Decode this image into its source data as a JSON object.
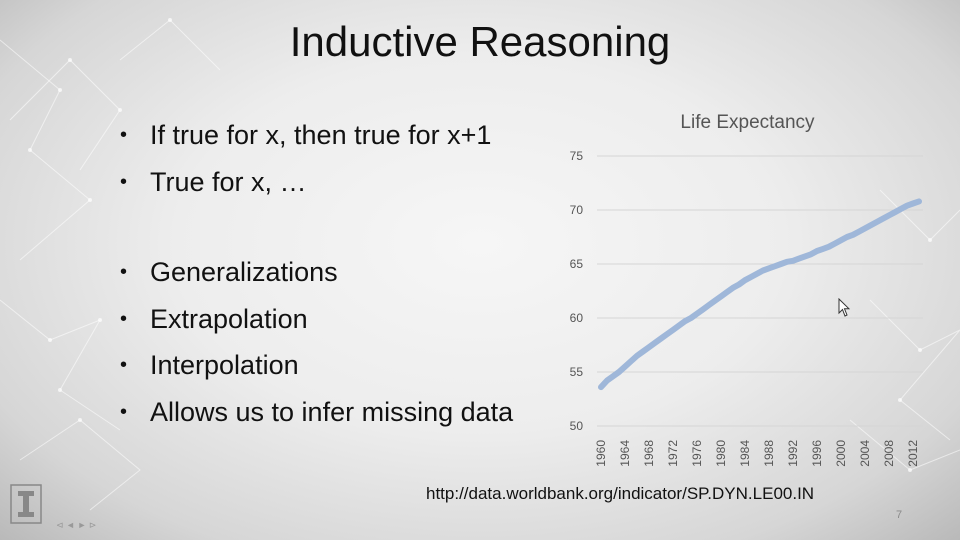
{
  "slide": {
    "title": "Inductive Reasoning",
    "bullets": [
      "If true for x, then true for x+1",
      "True for x, …",
      "Generalizations",
      "Extrapolation",
      "Interpolation",
      "Allows us to infer missing data"
    ],
    "bullet_symbol": "•",
    "source_link": "http://data.worldbank.org/indicator/SP.DYN.LE00.IN",
    "page_number": "7",
    "footer_controls": "⊲ ◄ ► ⊳"
  },
  "colors": {
    "background": "#ededed",
    "text": "#111111",
    "chart_line": "#9fb7d9",
    "chart_title": "#555555",
    "gridline": "#d5d5d5"
  },
  "icons": {
    "logo": "university-block-i-logo",
    "cursor": "mouse-pointer-icon"
  },
  "chart_data": {
    "type": "line",
    "title": "Life Expectancy",
    "xlabel": "",
    "ylabel": "",
    "ylim": [
      50,
      75
    ],
    "yticks": [
      "75",
      "70",
      "65",
      "60",
      "55",
      "50"
    ],
    "xtick_labels": [
      "1960",
      "1964",
      "1968",
      "1972",
      "1976",
      "1980",
      "1984",
      "1988",
      "1992",
      "1996",
      "2000",
      "2004",
      "2008",
      "2012"
    ],
    "grid": true,
    "legend": "none",
    "series": [
      {
        "x": [
          1960,
          1961,
          1962,
          1963,
          1964,
          1965,
          1966,
          1967,
          1968,
          1969,
          1970,
          1971,
          1972,
          1973,
          1974,
          1975,
          1976,
          1977,
          1978,
          1979,
          1980,
          1981,
          1982,
          1983,
          1984,
          1985,
          1986,
          1987,
          1988,
          1989,
          1990,
          1991,
          1992,
          1993,
          1994,
          1995,
          1996,
          1997,
          1998,
          1999,
          2000,
          2001,
          2002,
          2003,
          2004,
          2005,
          2006,
          2007,
          2008,
          2009,
          2010,
          2011,
          2012,
          2013
        ],
        "values": [
          53.6,
          54.2,
          54.6,
          55.0,
          55.5,
          56.0,
          56.5,
          56.9,
          57.3,
          57.7,
          58.1,
          58.5,
          58.9,
          59.3,
          59.7,
          60.0,
          60.4,
          60.8,
          61.2,
          61.6,
          62.0,
          62.4,
          62.8,
          63.1,
          63.5,
          63.8,
          64.1,
          64.4,
          64.6,
          64.8,
          65.0,
          65.2,
          65.3,
          65.5,
          65.7,
          65.9,
          66.2,
          66.4,
          66.6,
          66.9,
          67.2,
          67.5,
          67.7,
          68.0,
          68.3,
          68.6,
          68.9,
          69.2,
          69.5,
          69.8,
          70.1,
          70.4,
          70.6,
          70.8
        ]
      }
    ]
  }
}
